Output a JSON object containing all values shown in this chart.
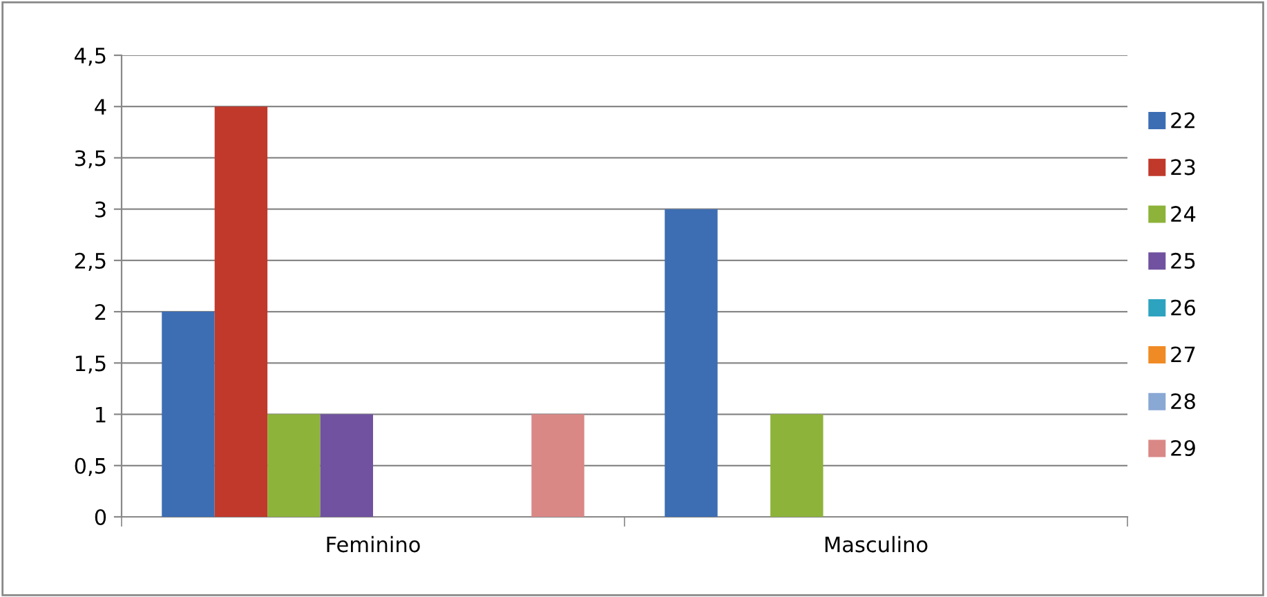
{
  "chart_data": {
    "type": "bar",
    "categories": [
      "Feminino",
      "Masculino"
    ],
    "series": [
      {
        "name": "22",
        "color": "#3d6eb4",
        "values": [
          2,
          3
        ]
      },
      {
        "name": "23",
        "color": "#c0392b",
        "values": [
          4,
          0
        ]
      },
      {
        "name": "24",
        "color": "#8db33a",
        "values": [
          1,
          1
        ]
      },
      {
        "name": "25",
        "color": "#7052a0",
        "values": [
          1,
          0
        ]
      },
      {
        "name": "26",
        "color": "#2ea3c0",
        "values": [
          0,
          0
        ]
      },
      {
        "name": "27",
        "color": "#f08a24",
        "values": [
          0,
          0
        ]
      },
      {
        "name": "28",
        "color": "#8aa8d4",
        "values": [
          0,
          0
        ]
      },
      {
        "name": "29",
        "color": "#d98886",
        "values": [
          1,
          0
        ]
      }
    ],
    "ylim": [
      0,
      4.5
    ],
    "yticks": [
      0,
      {
        "value": 0.5,
        "label": "0,5"
      },
      1,
      {
        "value": 1.5,
        "label": "1,5"
      },
      2,
      {
        "value": 2.5,
        "label": "2,5"
      },
      3,
      {
        "value": 3.5,
        "label": "3,5"
      },
      4,
      {
        "value": 4.5,
        "label": "4,5"
      }
    ],
    "grid": "y",
    "legend": "right"
  }
}
